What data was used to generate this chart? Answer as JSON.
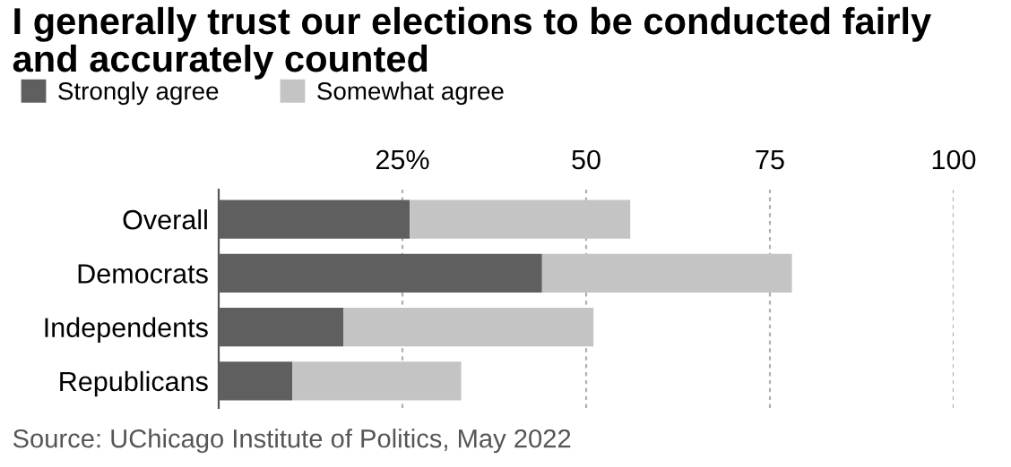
{
  "chart_data": {
    "type": "bar",
    "orientation": "horizontal",
    "stacked": true,
    "title": "I generally trust our elections to be conducted fairly\nand accurately counted",
    "categories": [
      "Overall",
      "Democrats",
      "Independents",
      "Republicans"
    ],
    "series": [
      {
        "name": "Strongly agree",
        "color": "#5f5f5f",
        "values": [
          26,
          44,
          17,
          10
        ]
      },
      {
        "name": "Somewhat agree",
        "color": "#c4c4c4",
        "values": [
          30,
          34,
          34,
          23
        ]
      }
    ],
    "xlim": [
      0,
      100
    ],
    "xticks": [
      {
        "value": 25,
        "label": "25%"
      },
      50,
      75,
      100
    ],
    "grid": "x",
    "legend": "top left",
    "annotations": [
      "Source: UChicago Institute of Politics, May 2022"
    ]
  }
}
